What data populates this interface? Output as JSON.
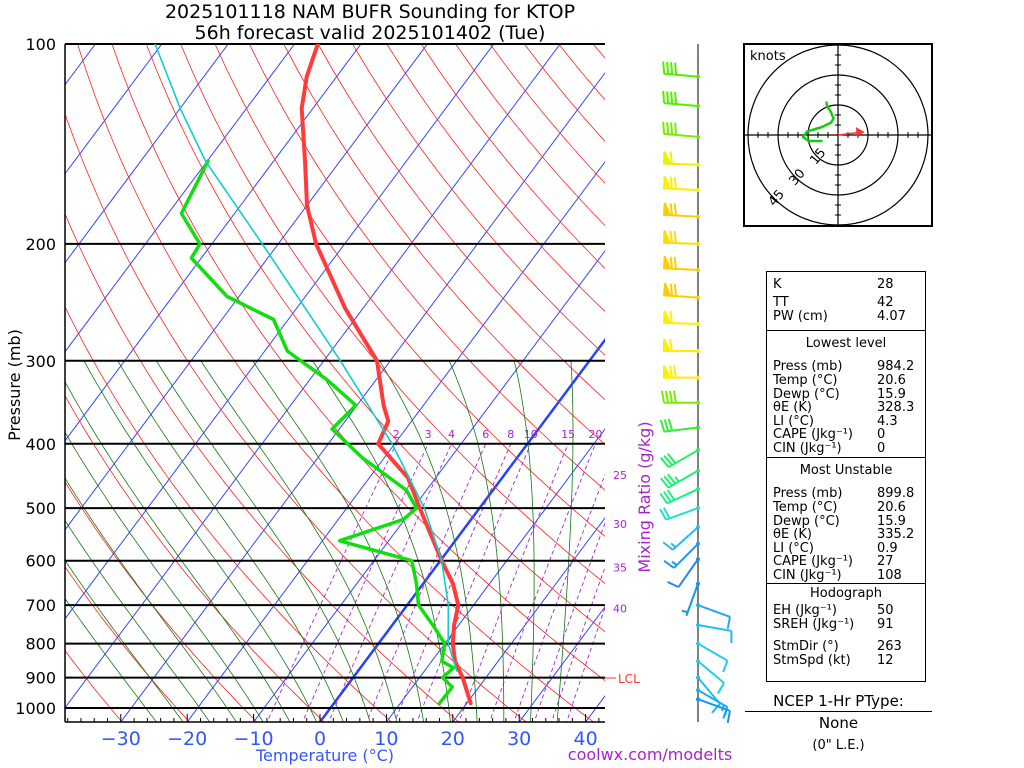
{
  "title": {
    "line1": "2025101118 NAM BUFR Sounding for KTOP",
    "line2": "56h forecast valid 2025101402 (Tue)"
  },
  "footer": "coolwx.com/modelts",
  "lcl_label": "LCL",
  "chart_data": {
    "type": "line",
    "subtype": "skew-T log-P diagram",
    "xlabel": "Temperature (°C)",
    "ylabel": "Pressure (mb)",
    "secondary_label": "Mixing Ratio (g/kg)",
    "x_ticks": [
      "−30",
      "−20",
      "−10",
      "0",
      "10",
      "20",
      "30",
      "40"
    ],
    "x_tick_values": [
      -30,
      -20,
      -10,
      0,
      10,
      20,
      30,
      40
    ],
    "y_ticks": [
      "100",
      "200",
      "300",
      "400",
      "500",
      "600",
      "700",
      "800",
      "900",
      "1000"
    ],
    "y_tick_values": [
      100,
      200,
      300,
      400,
      500,
      600,
      700,
      800,
      900,
      1000
    ],
    "ylim": [
      1050,
      100
    ],
    "mixing_ratio_labels": [
      "2",
      "3",
      "4",
      "6",
      "8",
      "10",
      "15",
      "20",
      "25",
      "30",
      "35",
      "40"
    ],
    "mixing_ratio_values": [
      2,
      3,
      4,
      6,
      8,
      10,
      15,
      20,
      25,
      30,
      35,
      40
    ],
    "lcl_pressure": 880,
    "colors": {
      "temperature": "#ff3b3b",
      "dewpoint": "#11dd11",
      "parcel": "#11cccc",
      "isotherm": "#3344ff",
      "freezing": "#2244ff",
      "dry_adiabat": "#ff2020",
      "moist_adiabat": "#117711",
      "mixing_ratio": "#aa22cc"
    },
    "series": [
      {
        "name": "Temperature",
        "pressure": [
          984,
          900,
          850,
          800,
          750,
          700,
          650,
          600,
          550,
          500,
          450,
          400,
          370,
          350,
          300,
          250,
          200,
          175,
          150,
          125,
          112,
          100
        ],
        "values": [
          20.6,
          16.5,
          13.5,
          11.2,
          9.3,
          7.7,
          4.5,
          0.2,
          -4.2,
          -9.0,
          -14.2,
          -22.5,
          -23.5,
          -26.0,
          -32.0,
          -42.7,
          -54.3,
          -60.0,
          -65.3,
          -71.7,
          -74.5,
          -76.5
        ]
      },
      {
        "name": "Dewpoint",
        "pressure": [
          984,
          930,
          900,
          870,
          850,
          800,
          750,
          700,
          650,
          600,
          560,
          520,
          500,
          470,
          420,
          380,
          350,
          320,
          290,
          260,
          240,
          210,
          200,
          180,
          150
        ],
        "values": [
          15.9,
          16.0,
          13.5,
          14.0,
          11.5,
          10.0,
          6.1,
          1.7,
          -1.0,
          -4.3,
          -17.4,
          -10.2,
          -9.5,
          -13.0,
          -23.3,
          -31.1,
          -30.2,
          -37.5,
          -46.6,
          -52.2,
          -61.8,
          -71.5,
          -71.8,
          -78.0,
          -79.9
        ]
      },
      {
        "name": "Parcel",
        "pressure": [
          880,
          800,
          700,
          600,
          500,
          400,
          300,
          200,
          150,
          125,
          100
        ],
        "values": [
          14.9,
          10.5,
          6.2,
          0.2,
          -8.3,
          -20.4,
          -37.5,
          -62.4,
          -80.3,
          -90.0,
          -101.0
        ]
      }
    ],
    "wind_barbs": [
      {
        "p": 112,
        "dir": 275,
        "kt": 40,
        "color": "#55ee00"
      },
      {
        "p": 124,
        "dir": 275,
        "kt": 40,
        "color": "#55ee00"
      },
      {
        "p": 138,
        "dir": 275,
        "kt": 40,
        "color": "#77ee00"
      },
      {
        "p": 152,
        "dir": 272,
        "kt": 60,
        "color": "#eeee00"
      },
      {
        "p": 166,
        "dir": 273,
        "kt": 70,
        "color": "#ffee00"
      },
      {
        "p": 182,
        "dir": 273,
        "kt": 70,
        "color": "#ffcc00"
      },
      {
        "p": 200,
        "dir": 272,
        "kt": 70,
        "color": "#ffdd00"
      },
      {
        "p": 219,
        "dir": 273,
        "kt": 70,
        "color": "#ffcc00"
      },
      {
        "p": 241,
        "dir": 274,
        "kt": 70,
        "color": "#ffcc00"
      },
      {
        "p": 264,
        "dir": 272,
        "kt": 60,
        "color": "#ffee00"
      },
      {
        "p": 290,
        "dir": 270,
        "kt": 60,
        "color": "#ffee00"
      },
      {
        "p": 318,
        "dir": 270,
        "kt": 70,
        "color": "#ffee00"
      },
      {
        "p": 347,
        "dir": 270,
        "kt": 40,
        "color": "#77ee00"
      },
      {
        "p": 378,
        "dir": 263,
        "kt": 30,
        "color": "#33ee33"
      },
      {
        "p": 409,
        "dir": 240,
        "kt": 30,
        "color": "#22ee66"
      },
      {
        "p": 439,
        "dir": 240,
        "kt": 35,
        "color": "#22ee77"
      },
      {
        "p": 468,
        "dir": 245,
        "kt": 30,
        "color": "#22ee88"
      },
      {
        "p": 500,
        "dir": 250,
        "kt": 20,
        "color": "#22ddcc"
      },
      {
        "p": 534,
        "dir": 228,
        "kt": 15,
        "color": "#22bbee"
      },
      {
        "p": 566,
        "dir": 225,
        "kt": 15,
        "color": "#2299ee"
      },
      {
        "p": 597,
        "dir": 215,
        "kt": 10,
        "color": "#2288ee"
      },
      {
        "p": 650,
        "dir": 200,
        "kt": 5,
        "color": "#1199ee"
      },
      {
        "p": 700,
        "dir": 110,
        "kt": 10,
        "color": "#22aaee"
      },
      {
        "p": 750,
        "dir": 100,
        "kt": 10,
        "color": "#22bbee"
      },
      {
        "p": 800,
        "dir": 120,
        "kt": 10,
        "color": "#22ccee"
      },
      {
        "p": 850,
        "dir": 130,
        "kt": 10,
        "color": "#22ccee"
      },
      {
        "p": 900,
        "dir": 140,
        "kt": 10,
        "color": "#22bbee"
      },
      {
        "p": 940,
        "dir": 120,
        "kt": 15,
        "color": "#22aaee"
      },
      {
        "p": 970,
        "dir": 110,
        "kt": 15,
        "color": "#1199ee"
      }
    ],
    "hodograph": {
      "unit_label": "knots",
      "ring_labels": [
        "15",
        "30",
        "45"
      ],
      "ring_values": [
        15,
        30,
        45
      ],
      "u": [
        -7.7,
        -14.7,
        -17.5,
        -15.5,
        -8.0,
        -3.5,
        -2.2,
        -3.8,
        -5.5,
        -5.8
      ],
      "v": [
        -3.0,
        -3.0,
        -1.0,
        1.7,
        4.0,
        6.2,
        8.3,
        12.0,
        14.5,
        16.7
      ],
      "storm_motion": {
        "dir": 263,
        "kt": 12
      }
    }
  },
  "indices": {
    "top": [
      {
        "label": "K",
        "value": "28"
      },
      {
        "label": "TT",
        "value": "42"
      },
      {
        "label": "PW (cm)",
        "value": "4.07"
      }
    ],
    "lowest_level": {
      "header": "Lowest level",
      "rows": [
        {
          "label": "Press (mb)",
          "value": "984.2"
        },
        {
          "label": "Temp (°C)",
          "value": "20.6"
        },
        {
          "label": "Dewp (°C)",
          "value": "15.9"
        },
        {
          "label": "θE (K)",
          "value": "328.3"
        },
        {
          "label": "LI (°C)",
          "value": "4.3"
        },
        {
          "label": "CAPE (Jkg⁻¹)",
          "value": "0"
        },
        {
          "label": "CIN (Jkg⁻¹)",
          "value": "0"
        }
      ]
    },
    "most_unstable": {
      "header": "Most Unstable",
      "rows": [
        {
          "label": "Press (mb)",
          "value": "899.8"
        },
        {
          "label": "Temp (°C)",
          "value": "20.6"
        },
        {
          "label": "Dewp (°C)",
          "value": "15.9"
        },
        {
          "label": "θE (K)",
          "value": "335.2"
        },
        {
          "label": "LI (°C)",
          "value": "0.9"
        },
        {
          "label": "CAPE (Jkg⁻¹)",
          "value": "27"
        },
        {
          "label": "CIN (Jkg⁻¹)",
          "value": "108"
        }
      ]
    },
    "hodograph": {
      "header": "Hodograph",
      "rows": [
        {
          "label": "EH (Jkg⁻¹)",
          "value": "50"
        },
        {
          "label": "SREH (Jkg⁻¹)",
          "value": "91"
        },
        {
          "label": "StmDir (°)",
          "value": "263"
        },
        {
          "label": "StmSpd (kt)",
          "value": "12"
        }
      ]
    }
  },
  "ptype": {
    "title": "NCEP 1-Hr PType:",
    "value": "None",
    "amount": "(0\" L.E.)"
  }
}
